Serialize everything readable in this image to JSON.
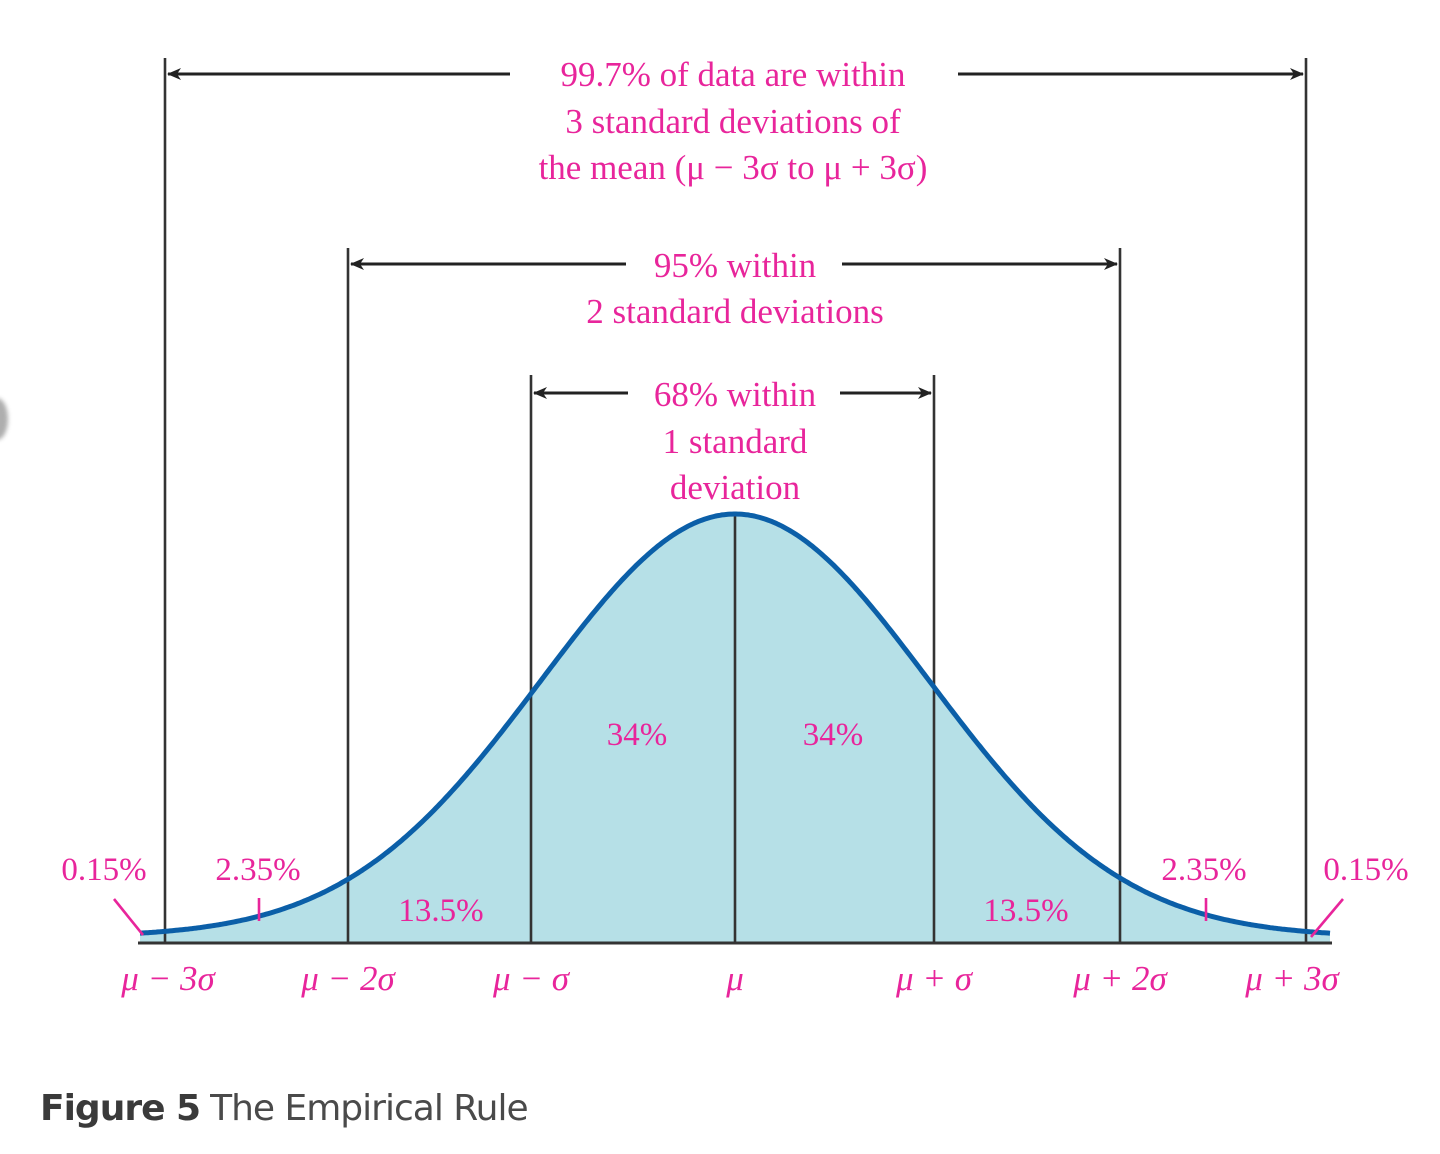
{
  "chart_data": {
    "type": "area",
    "title": "The Empirical Rule",
    "figure_label": "Figure 5",
    "distribution": "normal",
    "x_ticks": [
      "μ − 3σ",
      "μ − 2σ",
      "μ − σ",
      "μ",
      "μ + σ",
      "μ + 2σ",
      "μ + 3σ"
    ],
    "x_tick_sigma": [
      -3,
      -2,
      -1,
      0,
      1,
      2,
      3
    ],
    "regions": [
      {
        "from": "-inf",
        "to": -3,
        "percent": "0.15%"
      },
      {
        "from": -3,
        "to": -2,
        "percent": "2.35%"
      },
      {
        "from": -2,
        "to": -1,
        "percent": "13.5%"
      },
      {
        "from": -1,
        "to": 0,
        "percent": "34%"
      },
      {
        "from": 0,
        "to": 1,
        "percent": "34%"
      },
      {
        "from": 1,
        "to": 2,
        "percent": "13.5%"
      },
      {
        "from": 2,
        "to": 3,
        "percent": "2.35%"
      },
      {
        "from": 3,
        "to": "inf",
        "percent": "0.15%"
      }
    ],
    "intervals": [
      {
        "range_sigma": 1,
        "percent": 68,
        "label_lines": [
          "68% within",
          "1 standard",
          "deviation"
        ]
      },
      {
        "range_sigma": 2,
        "percent": 95,
        "label_lines": [
          "95% within",
          "2 standard deviations"
        ]
      },
      {
        "range_sigma": 3,
        "percent": 99.7,
        "label_lines": [
          "99.7% of data are within",
          "3 standard deviations of",
          "the mean (μ − 3σ  to μ + 3σ)"
        ]
      }
    ],
    "xlabel": "",
    "ylabel": "",
    "grid": false,
    "legend": null
  },
  "colors": {
    "text": "#e8259b",
    "curve": "#0b5fa8",
    "fill": "#b6e0e7",
    "lines": "#333333",
    "caption": "#4a4a4a"
  },
  "labels": {
    "interval3": {
      "l1": "99.7% of data are within",
      "l2": "3 standard deviations of",
      "l3": "the mean (μ − 3σ  to μ + 3σ)"
    },
    "interval2": {
      "l1": "95% within",
      "l2": "2 standard deviations"
    },
    "interval1": {
      "l1": "68% within",
      "l2": "1 standard",
      "l3": "deviation"
    },
    "regions": {
      "tail_left": "0.15%",
      "r_m3_m2": "2.35%",
      "r_m2_m1": "13.5%",
      "r_m1_0": "34%",
      "r_0_p1": "34%",
      "r_p1_p2": "13.5%",
      "r_p2_p3": "2.35%",
      "tail_right": "0.15%"
    },
    "ticks": {
      "m3": "μ − 3σ",
      "m2": "μ − 2σ",
      "m1": "μ − σ",
      "mu": "μ",
      "p1": "μ + σ",
      "p2": "μ + 2σ",
      "p3": "μ + 3σ"
    }
  },
  "caption": {
    "figure": "Figure 5",
    "title": "The Empirical Rule"
  }
}
